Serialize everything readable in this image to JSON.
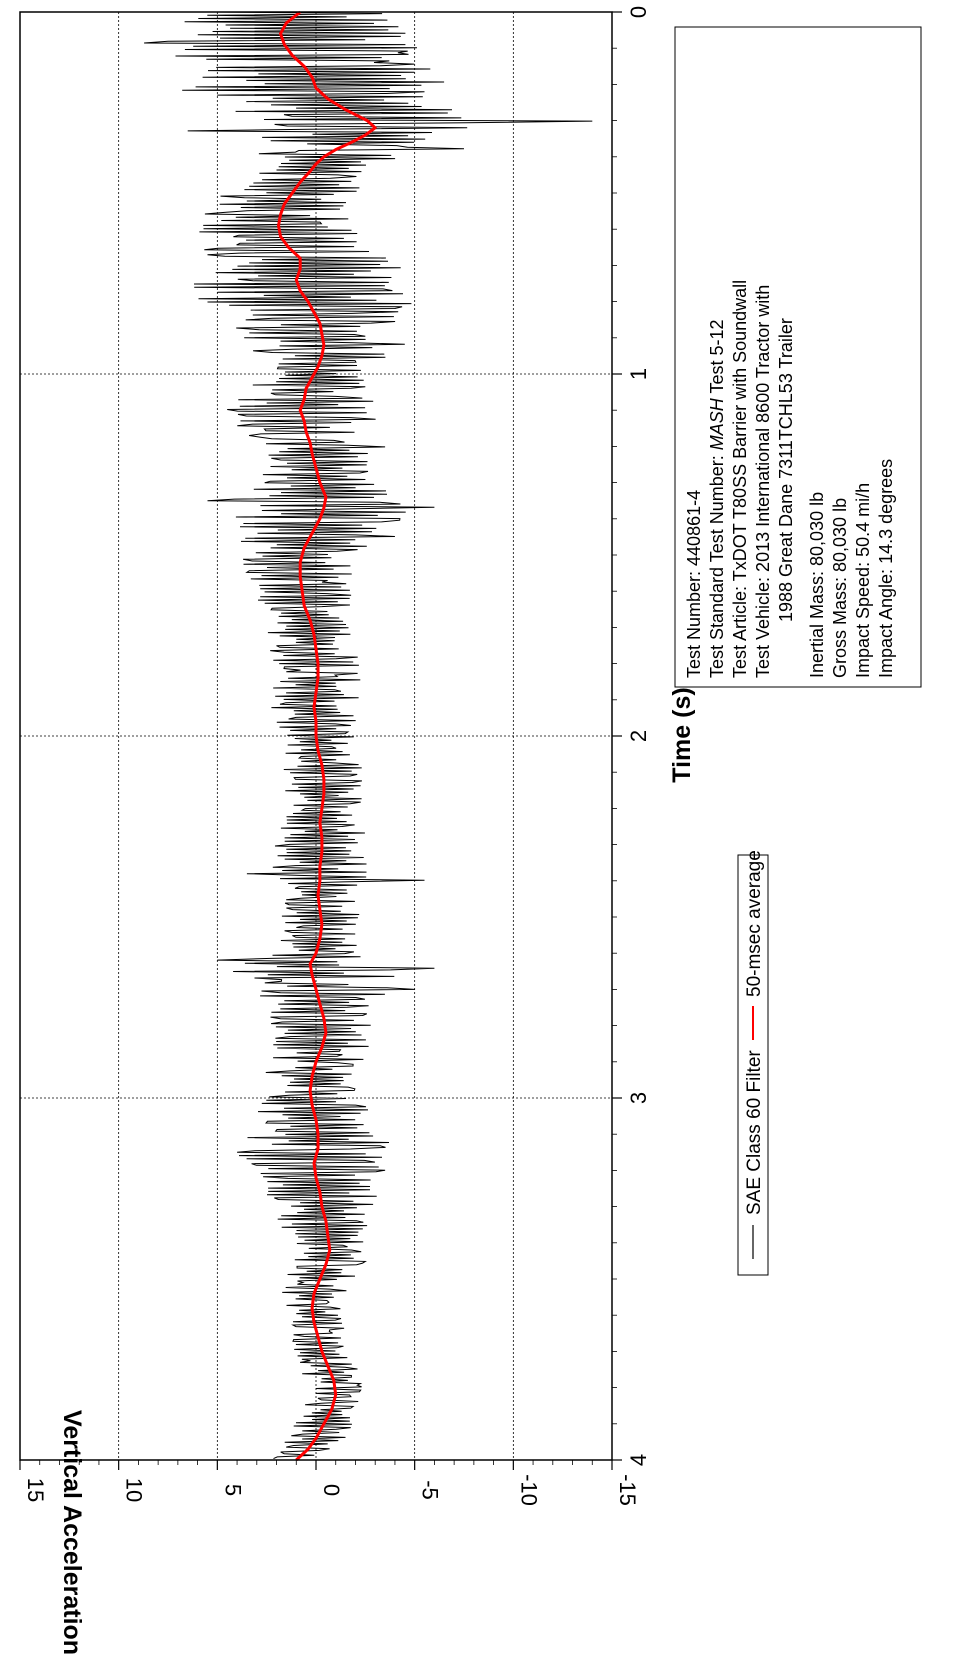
{
  "chart_data": {
    "type": "line",
    "orientation": "rotated-90-ccw",
    "xlabel": "Time (s)",
    "ylabel": "Vertical Acceleration (g)",
    "xlim": [
      0,
      4
    ],
    "ylim": [
      -15,
      15
    ],
    "x_ticks": [
      "0",
      "1",
      "2",
      "3",
      "4"
    ],
    "y_ticks": [
      "15",
      "10",
      "5",
      "0",
      "-5",
      "-10",
      "-15"
    ],
    "grid": true,
    "legend_placement": "bottom-center",
    "series": [
      {
        "name": "SAE Class 60 Filter",
        "color": "#000000",
        "envelope": [
          [
            0.0,
            5.5
          ],
          [
            0.1,
            7.5
          ],
          [
            0.2,
            7.0
          ],
          [
            0.3,
            6.5
          ],
          [
            0.35,
            5.0
          ],
          [
            0.45,
            3.0
          ],
          [
            0.55,
            4.0
          ],
          [
            0.65,
            5.0
          ],
          [
            0.8,
            5.5
          ],
          [
            0.9,
            4.5
          ],
          [
            1.0,
            2.5
          ],
          [
            1.1,
            4.0
          ],
          [
            1.2,
            3.0
          ],
          [
            1.3,
            3.0
          ],
          [
            1.35,
            5.0
          ],
          [
            1.45,
            3.5
          ],
          [
            1.6,
            2.5
          ],
          [
            1.8,
            2.5
          ],
          [
            2.0,
            2.0
          ],
          [
            2.2,
            2.0
          ],
          [
            2.3,
            2.5
          ],
          [
            2.4,
            2.5
          ],
          [
            2.5,
            2.0
          ],
          [
            2.6,
            2.0
          ],
          [
            2.65,
            4.5
          ],
          [
            2.75,
            3.0
          ],
          [
            2.9,
            2.5
          ],
          [
            3.0,
            2.5
          ],
          [
            3.15,
            4.0
          ],
          [
            3.25,
            3.0
          ],
          [
            3.4,
            2.0
          ],
          [
            3.6,
            1.5
          ],
          [
            3.8,
            1.5
          ],
          [
            4.0,
            1.5
          ]
        ],
        "extremes": [
          {
            "x": 0.08,
            "y": 7.5
          },
          {
            "x": 0.22,
            "y": -5.5
          },
          {
            "x": 0.3,
            "y": -14.0
          },
          {
            "x": 0.33,
            "y": 6.5
          },
          {
            "x": 0.38,
            "y": -7.5
          },
          {
            "x": 0.55,
            "y": 3.5
          },
          {
            "x": 0.67,
            "y": 5.5
          },
          {
            "x": 0.8,
            "y": 5.5
          },
          {
            "x": 0.82,
            "y": -4.0
          },
          {
            "x": 0.92,
            "y": -4.5
          },
          {
            "x": 1.1,
            "y": 4.5
          },
          {
            "x": 1.2,
            "y": -3.5
          },
          {
            "x": 1.35,
            "y": 5.5
          },
          {
            "x": 1.37,
            "y": -6.0
          },
          {
            "x": 1.45,
            "y": -4.0
          },
          {
            "x": 2.38,
            "y": 3.5
          },
          {
            "x": 2.4,
            "y": -5.5
          },
          {
            "x": 2.62,
            "y": 5.0
          },
          {
            "x": 2.64,
            "y": -6.0
          },
          {
            "x": 2.7,
            "y": -5.0
          },
          {
            "x": 3.15,
            "y": 4.0
          },
          {
            "x": 3.2,
            "y": -3.5
          },
          {
            "x": 3.45,
            "y": -2.5
          }
        ]
      },
      {
        "name": "50-msec average",
        "color": "#ff0000",
        "points": [
          [
            0.0,
            0.8
          ],
          [
            0.03,
            1.5
          ],
          [
            0.06,
            1.8
          ],
          [
            0.09,
            1.6
          ],
          [
            0.12,
            1.2
          ],
          [
            0.15,
            0.6
          ],
          [
            0.18,
            0.2
          ],
          [
            0.21,
            0.0
          ],
          [
            0.24,
            -0.6
          ],
          [
            0.27,
            -1.5
          ],
          [
            0.3,
            -2.6
          ],
          [
            0.32,
            -3.0
          ],
          [
            0.34,
            -2.5
          ],
          [
            0.36,
            -1.8
          ],
          [
            0.38,
            -1.0
          ],
          [
            0.4,
            -0.4
          ],
          [
            0.42,
            0.0
          ],
          [
            0.44,
            0.3
          ],
          [
            0.47,
            0.8
          ],
          [
            0.5,
            1.2
          ],
          [
            0.53,
            1.6
          ],
          [
            0.56,
            1.8
          ],
          [
            0.59,
            1.9
          ],
          [
            0.62,
            1.8
          ],
          [
            0.65,
            1.4
          ],
          [
            0.68,
            0.8
          ],
          [
            0.71,
            0.8
          ],
          [
            0.74,
            1.0
          ],
          [
            0.77,
            0.8
          ],
          [
            0.8,
            0.4
          ],
          [
            0.83,
            0.1
          ],
          [
            0.86,
            -0.2
          ],
          [
            0.89,
            -0.3
          ],
          [
            0.92,
            -0.4
          ],
          [
            0.95,
            -0.3
          ],
          [
            0.98,
            -0.1
          ],
          [
            1.01,
            0.2
          ],
          [
            1.04,
            0.5
          ],
          [
            1.07,
            0.6
          ],
          [
            1.1,
            0.8
          ],
          [
            1.13,
            0.6
          ],
          [
            1.16,
            0.5
          ],
          [
            1.19,
            0.3
          ],
          [
            1.22,
            0.2
          ],
          [
            1.26,
            0.0
          ],
          [
            1.3,
            -0.2
          ],
          [
            1.34,
            -0.5
          ],
          [
            1.37,
            -0.4
          ],
          [
            1.4,
            -0.2
          ],
          [
            1.44,
            0.2
          ],
          [
            1.48,
            0.6
          ],
          [
            1.52,
            0.8
          ],
          [
            1.56,
            0.8
          ],
          [
            1.6,
            0.7
          ],
          [
            1.64,
            0.6
          ],
          [
            1.68,
            0.3
          ],
          [
            1.72,
            0.1
          ],
          [
            1.76,
            0.0
          ],
          [
            1.8,
            -0.1
          ],
          [
            1.84,
            -0.1
          ],
          [
            1.88,
            0.0
          ],
          [
            1.92,
            0.1
          ],
          [
            1.96,
            0.0
          ],
          [
            2.0,
            0.0
          ],
          [
            2.04,
            -0.1
          ],
          [
            2.08,
            -0.3
          ],
          [
            2.12,
            -0.4
          ],
          [
            2.16,
            -0.4
          ],
          [
            2.2,
            -0.3
          ],
          [
            2.24,
            -0.2
          ],
          [
            2.28,
            -0.3
          ],
          [
            2.32,
            -0.3
          ],
          [
            2.36,
            -0.2
          ],
          [
            2.4,
            -0.2
          ],
          [
            2.44,
            -0.1
          ],
          [
            2.48,
            -0.2
          ],
          [
            2.52,
            -0.3
          ],
          [
            2.56,
            -0.2
          ],
          [
            2.6,
            0.0
          ],
          [
            2.63,
            0.3
          ],
          [
            2.66,
            0.2
          ],
          [
            2.7,
            0.0
          ],
          [
            2.74,
            -0.2
          ],
          [
            2.78,
            -0.4
          ],
          [
            2.82,
            -0.5
          ],
          [
            2.86,
            -0.3
          ],
          [
            2.9,
            0.0
          ],
          [
            2.94,
            0.2
          ],
          [
            2.98,
            0.3
          ],
          [
            3.02,
            0.2
          ],
          [
            3.06,
            0.0
          ],
          [
            3.1,
            -0.1
          ],
          [
            3.14,
            -0.1
          ],
          [
            3.18,
            0.1
          ],
          [
            3.22,
            0.0
          ],
          [
            3.26,
            -0.2
          ],
          [
            3.3,
            -0.3
          ],
          [
            3.34,
            -0.5
          ],
          [
            3.38,
            -0.6
          ],
          [
            3.42,
            -0.7
          ],
          [
            3.46,
            -0.5
          ],
          [
            3.5,
            -0.2
          ],
          [
            3.54,
            0.1
          ],
          [
            3.58,
            0.2
          ],
          [
            3.62,
            0.1
          ],
          [
            3.66,
            -0.1
          ],
          [
            3.7,
            -0.3
          ],
          [
            3.74,
            -0.6
          ],
          [
            3.78,
            -0.9
          ],
          [
            3.82,
            -1.0
          ],
          [
            3.86,
            -0.8
          ],
          [
            3.9,
            -0.4
          ],
          [
            3.94,
            0.0
          ],
          [
            3.97,
            0.4
          ],
          [
            4.0,
            1.0
          ]
        ]
      }
    ],
    "info_box": {
      "lines": [
        {
          "label": "Test Number: 440861-4"
        },
        {
          "label": "Test Standard Test Number: ",
          "italic": "MASH",
          "rest": " Test 5-12"
        },
        {
          "label": "Test Article: TxDOT T80SS Barrier with Soundwall"
        },
        {
          "label": "Test Vehicle: 2013 International 8600 Tractor with"
        },
        {
          "label": "1988 Great Dane 7311TCHL53 Trailer",
          "indent": true
        },
        {
          "label": "Inertial Mass: 80,030 lb"
        },
        {
          "label": "Gross Mass: 80,030 lb"
        },
        {
          "label": "Impact Speed: 50.4 mi/h"
        },
        {
          "label": "Impact Angle: 14.3 degrees"
        }
      ]
    }
  }
}
